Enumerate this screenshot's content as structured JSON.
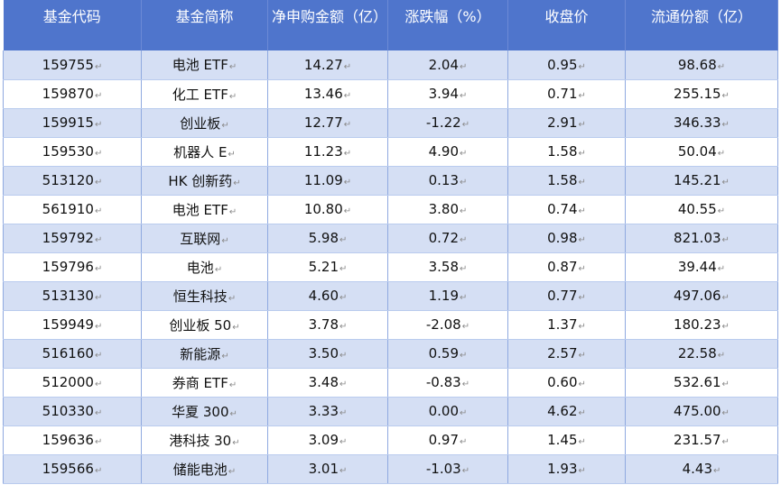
{
  "headers": [
    "基金代码",
    "基金简称",
    "净申购金额（亿）",
    "涨跌幅（%）",
    "收盘价",
    "流通份额（亿）"
  ],
  "mark": "↵",
  "rows": [
    [
      "159755",
      "电池 ETF",
      "14.27",
      "2.04",
      "0.95",
      "98.68"
    ],
    [
      "159870",
      "化工 ETF",
      "13.46",
      "3.94",
      "0.71",
      "255.15"
    ],
    [
      "159915",
      "创业板",
      "12.77",
      "-1.22",
      "2.91",
      "346.33"
    ],
    [
      "159530",
      "机器人 E",
      "11.23",
      "4.90",
      "1.58",
      "50.04"
    ],
    [
      "513120",
      "HK 创新药",
      "11.09",
      "0.13",
      "1.58",
      "145.21"
    ],
    [
      "561910",
      "电池 ETF",
      "10.80",
      "3.80",
      "0.74",
      "40.55"
    ],
    [
      "159792",
      "互联网",
      "5.98",
      "0.72",
      "0.98",
      "821.03"
    ],
    [
      "159796",
      "电池",
      "5.21",
      "3.58",
      "0.87",
      "39.44"
    ],
    [
      "513130",
      "恒生科技",
      "4.60",
      "1.19",
      "0.77",
      "497.06"
    ],
    [
      "159949",
      "创业板 50",
      "3.78",
      "-2.08",
      "1.37",
      "180.23"
    ],
    [
      "516160",
      "新能源",
      "3.50",
      "0.59",
      "2.57",
      "22.58"
    ],
    [
      "512000",
      "券商 ETF",
      "3.48",
      "-0.83",
      "0.60",
      "532.61"
    ],
    [
      "510330",
      "华夏 300",
      "3.33",
      "0.00",
      "4.62",
      "475.00"
    ],
    [
      "159636",
      "港科技 30",
      "3.09",
      "0.97",
      "1.45",
      "231.57"
    ],
    [
      "159566",
      "储能电池",
      "3.01",
      "-1.03",
      "1.93",
      "4.43"
    ]
  ]
}
